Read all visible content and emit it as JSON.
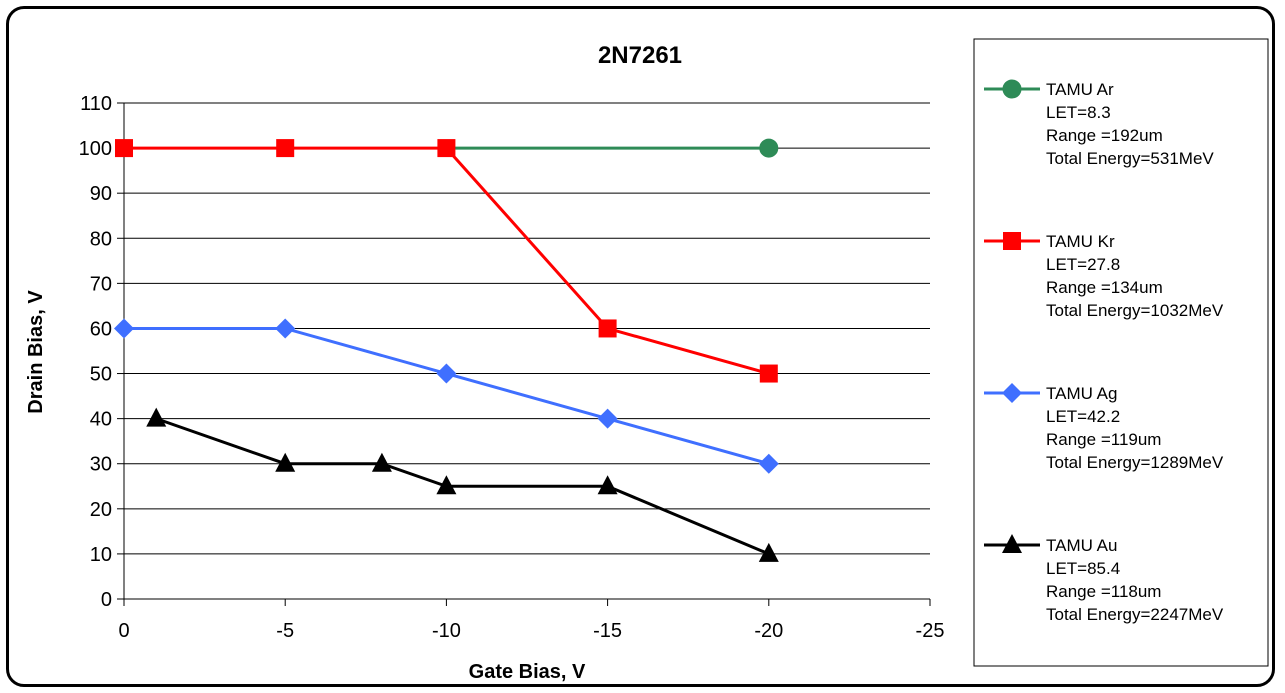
{
  "chart_data": {
    "type": "line",
    "title": "2N7261",
    "xlabel": "Gate Bias, V",
    "ylabel": "Drain Bias, V",
    "xlim": [
      0,
      -25
    ],
    "ylim": [
      0,
      110
    ],
    "x_ticks": [
      "0",
      "-5",
      "-10",
      "-15",
      "-20",
      "-25"
    ],
    "y_ticks": [
      "0",
      "10",
      "20",
      "30",
      "40",
      "50",
      "60",
      "70",
      "80",
      "90",
      "100",
      "110"
    ],
    "grid": "horizontal",
    "legend_position": "right",
    "series": [
      {
        "id": "ar",
        "name": "TAMU Ar",
        "legend_lines": [
          "LET=8.3",
          "Range =192um",
          "Total Energy=531MeV"
        ],
        "color": "#2e8b57",
        "marker": "circle",
        "x": [
          -10,
          -20
        ],
        "y": [
          100,
          100
        ],
        "markers_x": [
          -20
        ],
        "markers_y": [
          100
        ]
      },
      {
        "id": "kr",
        "name": "TAMU Kr",
        "legend_lines": [
          "LET=27.8",
          "Range =134um",
          "Total Energy=1032MeV"
        ],
        "color": "#ff0000",
        "marker": "square",
        "x": [
          0,
          -5,
          -10,
          -15,
          -20
        ],
        "y": [
          100,
          100,
          100,
          60,
          50
        ],
        "markers_x": [
          0,
          -5,
          -10,
          -15,
          -20
        ],
        "markers_y": [
          100,
          100,
          100,
          60,
          50
        ]
      },
      {
        "id": "ag",
        "name": "TAMU Ag",
        "legend_lines": [
          "LET=42.2",
          "Range =119um",
          "Total Energy=1289MeV"
        ],
        "color": "#3f6fff",
        "marker": "diamond",
        "x": [
          0,
          -5,
          -10,
          -15,
          -20
        ],
        "y": [
          60,
          60,
          50,
          40,
          30
        ],
        "markers_x": [
          0,
          -5,
          -10,
          -15,
          -20
        ],
        "markers_y": [
          60,
          60,
          50,
          40,
          30
        ]
      },
      {
        "id": "au",
        "name": "TAMU Au",
        "legend_lines": [
          "LET=85.4",
          "Range =118um",
          "Total Energy=2247MeV"
        ],
        "color": "#000000",
        "marker": "triangle",
        "x": [
          -1,
          -5,
          -8,
          -10,
          -15,
          -20
        ],
        "y": [
          40,
          30,
          30,
          25,
          25,
          10
        ],
        "markers_x": [
          -1,
          -5,
          -8,
          -10,
          -15,
          -20
        ],
        "markers_y": [
          40,
          30,
          30,
          25,
          25,
          10
        ]
      }
    ]
  }
}
